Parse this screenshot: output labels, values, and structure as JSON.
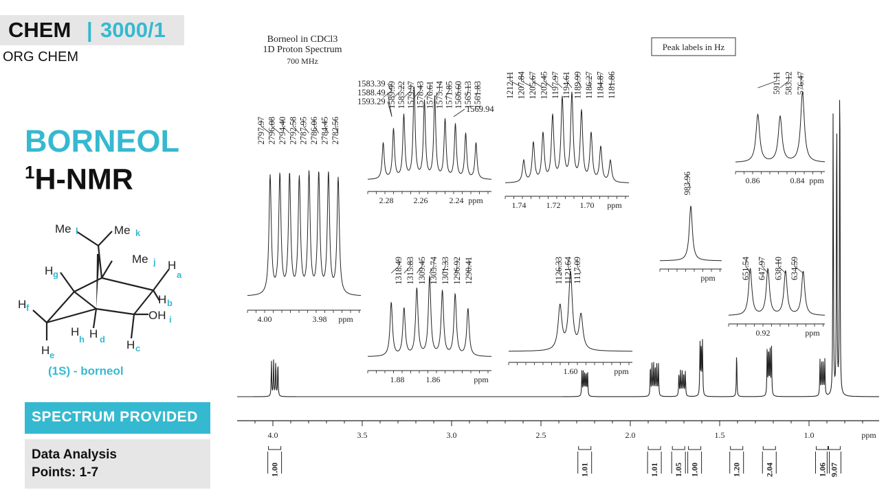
{
  "sidebar": {
    "course_code": "CHEM",
    "course_sep": "|",
    "course_number": "3000/1",
    "course_subtitle": "ORG CHEM",
    "title": "BORNEOL",
    "subtitle_sup": "1",
    "subtitle_rest": "H-NMR",
    "molecule_caption": "(1S) - borneol",
    "section_label": "SPECTRUM PROVIDED",
    "info_line1": "Data Analysis",
    "info_line2": "Points: 1-7",
    "molecule_labels": {
      "me_l": "Me",
      "l": "l",
      "me_k": "Me",
      "k": "k",
      "me_j": "Me",
      "j": "j",
      "h_g": "H",
      "g": "g",
      "h_a": "H",
      "a": "a",
      "h_b": "H",
      "b": "b",
      "h_f": "H",
      "f": "f",
      "oh": "OH",
      "i": "i",
      "h_h": "H",
      "h": "h",
      "h_d": "H",
      "d": "d",
      "h_c": "H",
      "c": "c",
      "h_e": "H",
      "e": "e"
    },
    "colors": {
      "accent": "#35b9d0",
      "grey_box": "#e6e6e6"
    }
  },
  "chart_data": {
    "type": "line",
    "title": "Borneol in CDCl3",
    "subtitle": "1D Proton Spectrum",
    "field": "700 MHz",
    "note": "Peak labels in Hz",
    "xlabel": "ppm",
    "x_reversed": true,
    "xlim": [
      4.1,
      0.7
    ],
    "x_ticks": [
      4.0,
      3.5,
      3.0,
      2.5,
      2.0,
      1.5,
      1.0
    ],
    "x_tick_labels": [
      "4.0",
      "3.5",
      "3.0",
      "2.5",
      "2.0",
      "1.5",
      "1.0"
    ],
    "peaks": [
      {
        "ppm": 3.99,
        "height": 0.1,
        "mult": 4,
        "split": 0.012
      },
      {
        "ppm": 2.255,
        "height": 0.07,
        "mult": 5,
        "split": 0.008
      },
      {
        "ppm": 1.865,
        "height": 0.09,
        "mult": 6,
        "split": 0.009
      },
      {
        "ppm": 1.71,
        "height": 0.07,
        "mult": 5,
        "split": 0.009
      },
      {
        "ppm": 1.603,
        "height": 0.15,
        "mult": 3,
        "split": 0.007
      },
      {
        "ppm": 1.405,
        "height": 0.13,
        "mult": 1,
        "split": 0
      },
      {
        "ppm": 1.222,
        "height": 0.14,
        "mult": 4,
        "split": 0.008
      },
      {
        "ppm": 0.925,
        "height": 0.1,
        "mult": 4,
        "split": 0.009
      },
      {
        "ppm": 0.865,
        "height": 0.82,
        "mult": 1,
        "split": 0
      },
      {
        "ppm": 0.845,
        "height": 0.85,
        "mult": 1,
        "split": 0
      },
      {
        "ppm": 0.828,
        "height": 1.0,
        "mult": 1,
        "split": 0
      }
    ],
    "integrals": [
      {
        "ppm": 3.99,
        "value": "1.00"
      },
      {
        "ppm": 2.255,
        "value": "1.01"
      },
      {
        "ppm": 1.865,
        "value": "1.01"
      },
      {
        "ppm": 1.73,
        "value": "1.05"
      },
      {
        "ppm": 1.64,
        "value": "1.00"
      },
      {
        "ppm": 1.405,
        "value": "1.20"
      },
      {
        "ppm": 1.222,
        "value": "2.04"
      },
      {
        "ppm": 0.925,
        "value": "1.06"
      },
      {
        "ppm": 0.86,
        "value": "9.07"
      }
    ],
    "insets": [
      {
        "id": "i398",
        "x_ticks": [
          "4.00",
          "3.98"
        ],
        "xlabel": "ppm",
        "labels": [
          "2797.97",
          "2796.08",
          "2794.40",
          "2792.58",
          "2787.95",
          "2786.06",
          "2784.45",
          "2782.56"
        ]
      },
      {
        "id": "i226",
        "x_ticks": [
          "2.28",
          "2.26",
          "2.24"
        ],
        "xlabel": "ppm",
        "labels": [
          "1589.99",
          "1585.22",
          "1579.97",
          "1578.43",
          "1576.61",
          "1575.14",
          "1571.85",
          "1566.60",
          "1565.13",
          "1561.83"
        ],
        "extra_labels": [
          "1583.39",
          "1588.49",
          "1593.29",
          "1569.94"
        ]
      },
      {
        "id": "i172",
        "x_ticks": [
          "1.74",
          "1.72",
          "1.70"
        ],
        "xlabel": "ppm",
        "labels": [
          "1212.11",
          "1207.84",
          "1205.67",
          "1202.45",
          "1197.97",
          "1194.61",
          "1189.99",
          "1186.27",
          "1184.87",
          "1181.86"
        ]
      },
      {
        "id": "i140",
        "x_ticks": [],
        "xlabel": "ppm",
        "labels": [
          "983.96"
        ]
      },
      {
        "id": "i084",
        "x_ticks": [
          "0.86",
          "0.84"
        ],
        "xlabel": "ppm",
        "labels": [
          "591.11",
          "583.12",
          "576.47"
        ]
      },
      {
        "id": "i187",
        "x_ticks": [
          "1.88",
          "1.86"
        ],
        "xlabel": "ppm",
        "labels": [
          "1318.49",
          "1315.83",
          "1309.45",
          "1305.74",
          "1301.33",
          "1296.92",
          "1290.41"
        ]
      },
      {
        "id": "i160",
        "x_ticks": [
          "1.60"
        ],
        "xlabel": "ppm",
        "labels": [
          "1126.33",
          "1121.64",
          "1117.09"
        ]
      },
      {
        "id": "i092",
        "x_ticks": [
          "0.92"
        ],
        "xlabel": "ppm",
        "labels": [
          "651.54",
          "647.97",
          "638.10",
          "634.59"
        ]
      }
    ]
  }
}
